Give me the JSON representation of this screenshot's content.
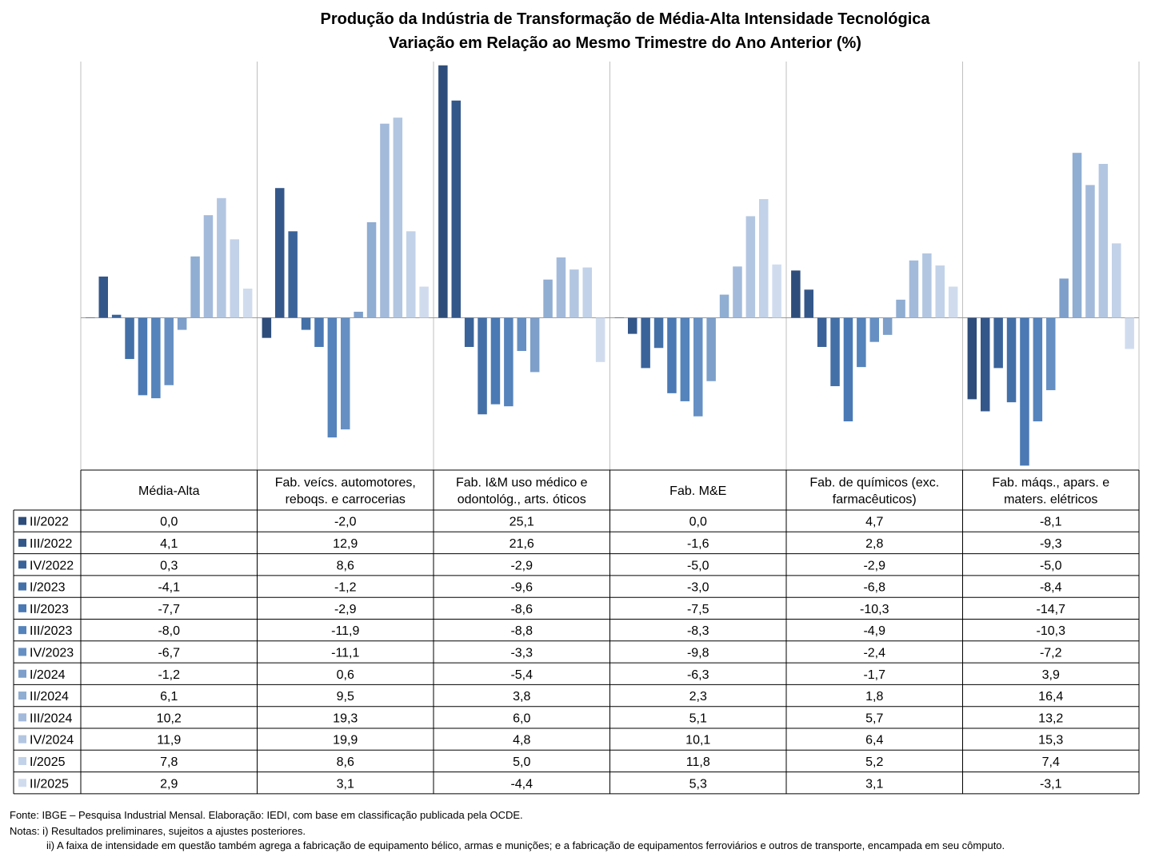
{
  "title": "Produção da Indústria de Transformação de Média-Alta Intensidade Tecnológica",
  "subtitle": "Variação em Relação ao Mesmo Trimestre do Ano Anterior (%)",
  "footer": {
    "source": "Fonte: IBGE – Pesquisa Industrial Mensal. Elaboração: IEDI, com base em classificação publicada pela OCDE.",
    "note1": "Notas: i) Resultados preliminares, sujeitos a ajustes posteriores.",
    "note2": "ii) A faixa de intensidade em questão também  agrega a fabricação de equipamento  bélico, armas e munições; e a fabricação de equipamentos  ferroviários e outros de transporte,  encampada em seu cômputo."
  },
  "chart_data": {
    "type": "bar",
    "grid": "vertical lines between category groups",
    "legend": "table rows (data table below chart)",
    "categories": [
      "Média-Alta",
      "Fab. veícs. automotores, reboqs. e carrocerias",
      "Fab. I&M uso médico e odontológ., arts. óticos",
      "Fab. M&E",
      "Fab. de químicos (exc. farmacêuticos)",
      "Fab. máqs., apars. e maters. elétricos"
    ],
    "category_lines": [
      [
        "Média-Alta"
      ],
      [
        "Fab. veícs. automotores,",
        "reboqs. e carrocerias"
      ],
      [
        "Fab. I&M uso médico e",
        "odontológ., arts. óticos"
      ],
      [
        "Fab. M&E"
      ],
      [
        "Fab. de químicos (exc.",
        "farmacêuticos)"
      ],
      [
        "Fab. máqs., apars. e",
        "maters. elétricos"
      ]
    ],
    "series": [
      {
        "name": "II/2022",
        "color": "#2e4d7a",
        "values": [
          0.0,
          -2.0,
          25.1,
          0.0,
          4.7,
          -8.1
        ]
      },
      {
        "name": "III/2022",
        "color": "#34578a",
        "values": [
          4.1,
          12.9,
          21.6,
          -1.6,
          2.8,
          -9.3
        ]
      },
      {
        "name": "IV/2022",
        "color": "#3a6399",
        "values": [
          0.3,
          8.6,
          -2.9,
          -5.0,
          -2.9,
          -5.0
        ]
      },
      {
        "name": "I/2023",
        "color": "#4470a8",
        "values": [
          -4.1,
          -1.2,
          -9.6,
          -3.0,
          -6.8,
          -8.4
        ]
      },
      {
        "name": "II/2023",
        "color": "#4a79b4",
        "values": [
          -7.7,
          -2.9,
          -8.6,
          -7.5,
          -10.3,
          -14.7
        ]
      },
      {
        "name": "III/2023",
        "color": "#5583bb",
        "values": [
          -8.0,
          -11.9,
          -8.8,
          -8.3,
          -4.9,
          -10.3
        ]
      },
      {
        "name": "IV/2023",
        "color": "#6690c3",
        "values": [
          -6.7,
          -11.1,
          -3.3,
          -9.8,
          -2.4,
          -7.2
        ]
      },
      {
        "name": "I/2024",
        "color": "#7d9fca",
        "values": [
          -1.2,
          0.6,
          -5.4,
          -6.3,
          -1.7,
          3.9
        ]
      },
      {
        "name": "II/2024",
        "color": "#90add2",
        "values": [
          6.1,
          9.5,
          3.8,
          2.3,
          1.8,
          16.4
        ]
      },
      {
        "name": "III/2024",
        "color": "#a3badb",
        "values": [
          10.2,
          19.3,
          6.0,
          5.1,
          5.7,
          13.2
        ]
      },
      {
        "name": "IV/2024",
        "color": "#b3c6e1",
        "values": [
          11.9,
          19.9,
          4.8,
          10.1,
          6.4,
          15.3
        ]
      },
      {
        "name": "I/2025",
        "color": "#c2d2e8",
        "values": [
          7.8,
          8.6,
          5.0,
          11.8,
          5.2,
          7.4
        ]
      },
      {
        "name": "II/2025",
        "color": "#d0dcee",
        "values": [
          2.9,
          3.1,
          -4.4,
          5.3,
          3.1,
          -3.1
        ]
      }
    ],
    "value_labels": [
      [
        "0,0",
        "-2,0",
        "25,1",
        "0,0",
        "4,7",
        "-8,1"
      ],
      [
        "4,1",
        "12,9",
        "21,6",
        "-1,6",
        "2,8",
        "-9,3"
      ],
      [
        "0,3",
        "8,6",
        "-2,9",
        "-5,0",
        "-2,9",
        "-5,0"
      ],
      [
        "-4,1",
        "-1,2",
        "-9,6",
        "-3,0",
        "-6,8",
        "-8,4"
      ],
      [
        "-7,7",
        "-2,9",
        "-8,6",
        "-7,5",
        "-10,3",
        "-14,7"
      ],
      [
        "-8,0",
        "-11,9",
        "-8,8",
        "-8,3",
        "-4,9",
        "-10,3"
      ],
      [
        "-6,7",
        "-11,1",
        "-3,3",
        "-9,8",
        "-2,4",
        "-7,2"
      ],
      [
        "-1,2",
        "0,6",
        "-5,4",
        "-6,3",
        "-1,7",
        "3,9"
      ],
      [
        "6,1",
        "9,5",
        "3,8",
        "2,3",
        "1,8",
        "16,4"
      ],
      [
        "10,2",
        "19,3",
        "6,0",
        "5,1",
        "5,7",
        "13,2"
      ],
      [
        "11,9",
        "19,9",
        "4,8",
        "10,1",
        "6,4",
        "15,3"
      ],
      [
        "7,8",
        "8,6",
        "5,0",
        "11,8",
        "5,2",
        "7,4"
      ],
      [
        "2,9",
        "3,1",
        "-4,4",
        "5,3",
        "3,1",
        "-3,1"
      ]
    ],
    "ylim": [
      -15.2,
      25.2
    ]
  }
}
